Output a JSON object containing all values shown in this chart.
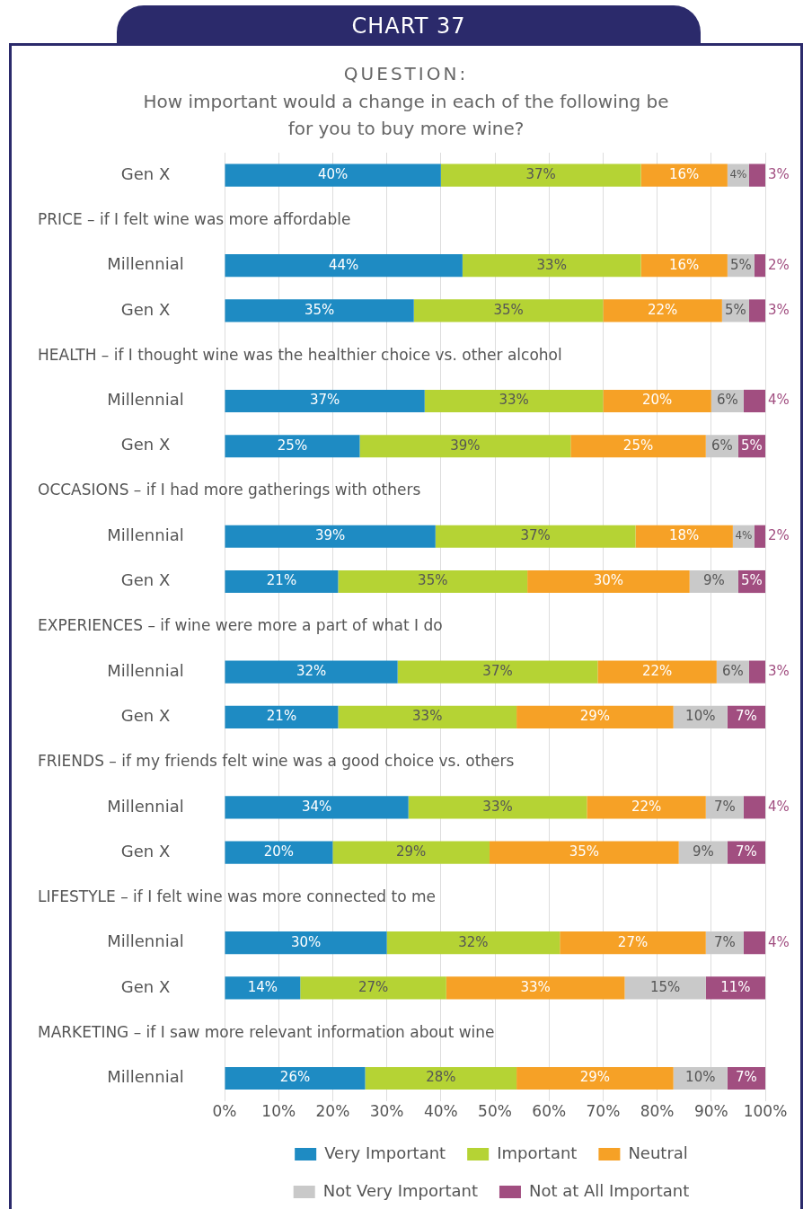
{
  "chart_data": {
    "type": "bar",
    "orientation": "horizontal",
    "stacked": true,
    "title": "CHART 37",
    "subtitle": "How important would a change in each of the following be for you to buy more wine?",
    "annotations": [
      "QUESTION:",
      "PRICE – if I felt wine was more affordable",
      "HEALTH – if I thought wine was the healthier choice vs. other alcohol",
      "OCCASIONS – if I had more gatherings with others",
      "EXPERIENCES – if wine were more a part of what I do",
      "FRIENDS – if my friends felt wine was a good choice vs. others",
      "LIFESTYLE – if I felt wine was more connected to me",
      "MARKETING – if I saw more relevant information about wine"
    ],
    "categories": [
      "Gen X",
      null,
      "Millennial",
      "Gen X",
      null,
      "Millennial",
      "Gen X",
      null,
      "Millennial",
      "Gen X",
      null,
      "Millennial",
      "Gen X",
      null,
      "Millennial",
      "Gen X",
      null,
      "Millennial",
      "Gen X",
      null,
      "Millennial"
    ],
    "series": [
      {
        "name": "Very Important",
        "color": "#1e8bc3",
        "values": [
          40,
          null,
          44,
          35,
          null,
          37,
          25,
          null,
          39,
          21,
          null,
          32,
          21,
          null,
          34,
          20,
          null,
          30,
          14,
          null,
          26
        ],
        "value_labels": [
          "40%",
          null,
          "44%",
          "35%",
          null,
          "37%",
          "25%",
          null,
          "39%",
          "21%",
          null,
          "32%",
          "21%",
          null,
          "34%",
          "20%",
          null,
          "30%",
          "14%",
          null,
          "26%"
        ]
      },
      {
        "name": "Important",
        "color": "#b5d334",
        "values": [
          37,
          null,
          33,
          35,
          null,
          33,
          39,
          null,
          37,
          35,
          null,
          37,
          33,
          null,
          33,
          29,
          null,
          32,
          27,
          null,
          28
        ],
        "value_labels": [
          "37%",
          null,
          "33%",
          "35%",
          null,
          "33%",
          "39%",
          null,
          "37%",
          "35%",
          null,
          "37%",
          "33%",
          null,
          "33%",
          "29%",
          null,
          "32%",
          "27%",
          null,
          "28%"
        ]
      },
      {
        "name": "Neutral",
        "color": "#f6a126",
        "values": [
          16,
          null,
          16,
          22,
          null,
          20,
          25,
          null,
          18,
          30,
          null,
          22,
          29,
          null,
          22,
          35,
          null,
          27,
          33,
          null,
          29
        ],
        "value_labels": [
          "16%",
          null,
          "16%",
          "22%",
          null,
          "20%",
          "25%",
          null,
          "18%",
          "30%",
          null,
          "22%",
          "29%",
          null,
          "22%",
          "35%",
          null,
          "27%",
          "33%",
          null,
          "29%"
        ]
      },
      {
        "name": "Not Very Important",
        "color": "#c9c9c9",
        "values": [
          4,
          null,
          5,
          5,
          null,
          6,
          6,
          null,
          4,
          9,
          null,
          6,
          10,
          null,
          7,
          9,
          null,
          7,
          15,
          null,
          10
        ],
        "value_labels": [
          "4%",
          null,
          "5%",
          "5%",
          null,
          "6%",
          "6%",
          null,
          "4%",
          "9%",
          null,
          "6%",
          "10%",
          null,
          "7%",
          "9%",
          null,
          "7%",
          "15%",
          null,
          "10%"
        ]
      },
      {
        "name": "Not at All Important",
        "color": "#a14e80",
        "values": [
          3,
          null,
          2,
          3,
          null,
          4,
          5,
          null,
          2,
          5,
          null,
          3,
          7,
          null,
          4,
          7,
          null,
          4,
          11,
          null,
          7
        ],
        "value_labels": [
          "3%",
          null,
          "2%",
          "3%",
          null,
          "4%",
          "5%",
          null,
          "2%",
          "5%",
          null,
          "3%",
          "7%",
          null,
          "4%",
          "7%",
          null,
          "4%",
          "11%",
          null,
          "7%"
        ]
      }
    ],
    "xlim": [
      0,
      100
    ],
    "xticks": [
      {
        "value": 0,
        "label": "0%"
      },
      {
        "value": 10,
        "label": "10%"
      },
      {
        "value": 20,
        "label": "20%"
      },
      {
        "value": 30,
        "label": "30%"
      },
      {
        "value": 40,
        "label": "40%"
      },
      {
        "value": 50,
        "label": "50%"
      },
      {
        "value": 60,
        "label": "60%"
      },
      {
        "value": 70,
        "label": "70%"
      },
      {
        "value": 80,
        "label": "80%"
      },
      {
        "value": 90,
        "label": "90%"
      },
      {
        "value": 100,
        "label": "100%"
      }
    ],
    "grid": "x",
    "legend": "bottom"
  }
}
